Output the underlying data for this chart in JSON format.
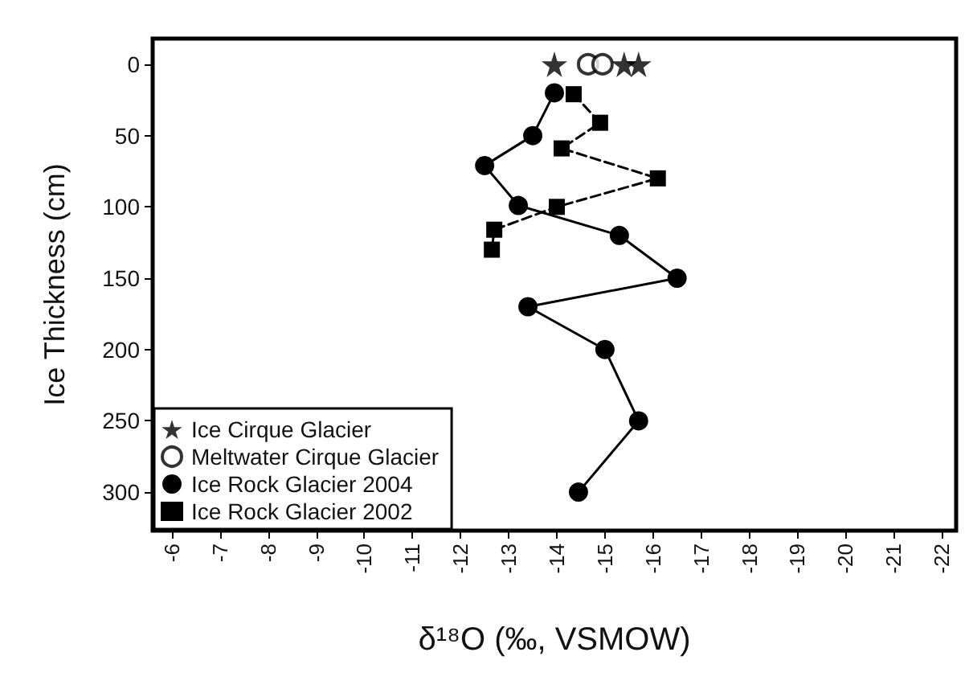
{
  "chart_data": {
    "type": "line",
    "xlabel": "δ¹⁸O (‰, VSMOW)",
    "ylabel": "Ice Thickness (cm)",
    "xlim": [
      -5.6,
      -22.3
    ],
    "xticks": [
      -6,
      -7,
      -8,
      -9,
      -10,
      -11,
      -12,
      -13,
      -14,
      -15,
      -16,
      -17,
      -18,
      -19,
      -20,
      -21,
      -22
    ],
    "ylim": [
      327,
      -18
    ],
    "yticks": [
      0,
      50,
      100,
      150,
      200,
      250,
      300
    ],
    "grid": false,
    "legend": "bottom left",
    "series": [
      {
        "name": "Ice Cirque Glacier",
        "type": "scatter",
        "marker": "star",
        "color": "#000000",
        "x": [
          -13.95,
          -15.4,
          -15.7
        ],
        "values": [
          0,
          0,
          0
        ]
      },
      {
        "name": "Meltwater Cirque Glacier",
        "type": "scatter",
        "marker": "open circle",
        "color": "#000000",
        "x": [
          -14.65,
          -14.95
        ],
        "values": [
          0,
          0
        ]
      },
      {
        "name": "Ice Rock Glacier 2004",
        "marker": "circle",
        "line_style": "solid",
        "color": "#000000",
        "x": [
          -13.95,
          -13.5,
          -12.5,
          -13.2,
          -15.3,
          -16.5,
          -13.4,
          -15.0,
          -15.7,
          -14.45
        ],
        "values": [
          20,
          50,
          71,
          99,
          120,
          150,
          170,
          200,
          250,
          300
        ]
      },
      {
        "name": "Ice Rock Glacier 2002",
        "marker": "square",
        "line_style": "dashed",
        "color": "#000000",
        "x": [
          -14.35,
          -14.9,
          -14.1,
          -16.1,
          -14.0,
          -12.7,
          -12.65
        ],
        "values": [
          21,
          41,
          59,
          80,
          100,
          116,
          130
        ]
      }
    ]
  }
}
